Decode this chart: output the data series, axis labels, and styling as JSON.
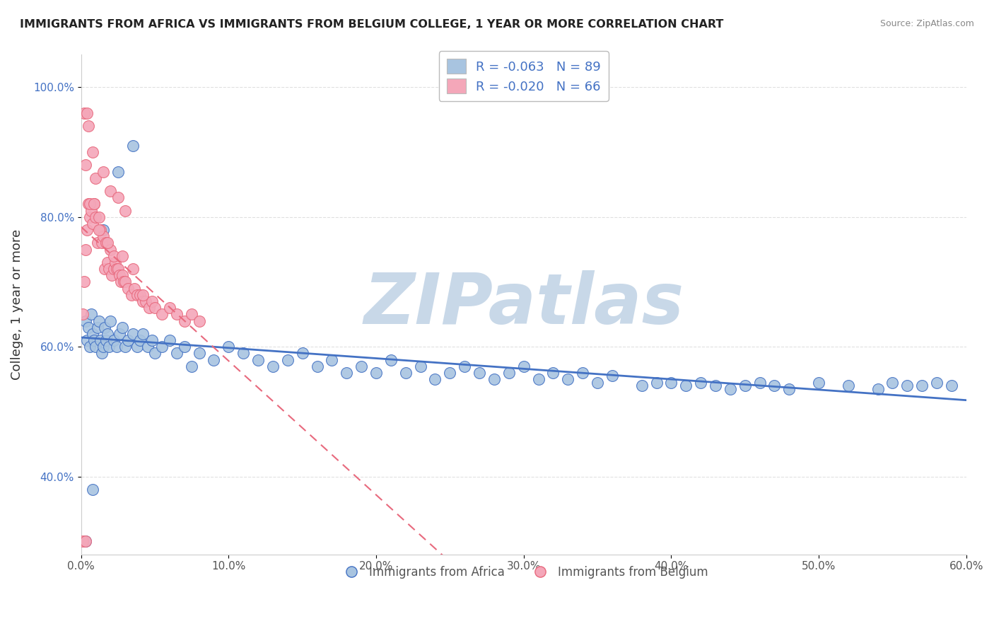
{
  "title": "IMMIGRANTS FROM AFRICA VS IMMIGRANTS FROM BELGIUM COLLEGE, 1 YEAR OR MORE CORRELATION CHART",
  "source": "Source: ZipAtlas.com",
  "ylabel": "College, 1 year or more",
  "xlim": [
    0.0,
    0.6
  ],
  "ylim": [
    0.28,
    1.05
  ],
  "xticks": [
    0.0,
    0.1,
    0.2,
    0.3,
    0.4,
    0.5,
    0.6
  ],
  "yticks": [
    0.4,
    0.6,
    0.8,
    1.0
  ],
  "xtick_labels": [
    "0.0%",
    "10.0%",
    "20.0%",
    "30.0%",
    "40.0%",
    "50.0%",
    "60.0%"
  ],
  "ytick_labels": [
    "40.0%",
    "60.0%",
    "80.0%",
    "100.0%"
  ],
  "series_africa": {
    "label": "Immigrants from Africa",
    "R": -0.063,
    "N": 89,
    "color": "#a8c4e0",
    "line_color": "#4472c4",
    "x": [
      0.003,
      0.004,
      0.005,
      0.006,
      0.007,
      0.008,
      0.009,
      0.01,
      0.011,
      0.012,
      0.013,
      0.014,
      0.015,
      0.016,
      0.017,
      0.018,
      0.019,
      0.02,
      0.022,
      0.024,
      0.026,
      0.028,
      0.03,
      0.032,
      0.035,
      0.038,
      0.04,
      0.042,
      0.045,
      0.048,
      0.05,
      0.055,
      0.06,
      0.065,
      0.07,
      0.075,
      0.08,
      0.09,
      0.1,
      0.11,
      0.12,
      0.13,
      0.14,
      0.15,
      0.16,
      0.17,
      0.18,
      0.19,
      0.2,
      0.21,
      0.22,
      0.23,
      0.24,
      0.25,
      0.26,
      0.27,
      0.28,
      0.29,
      0.3,
      0.31,
      0.32,
      0.33,
      0.34,
      0.35,
      0.36,
      0.38,
      0.39,
      0.4,
      0.41,
      0.42,
      0.43,
      0.44,
      0.45,
      0.46,
      0.47,
      0.48,
      0.5,
      0.52,
      0.54,
      0.55,
      0.56,
      0.57,
      0.58,
      0.59,
      0.003,
      0.008,
      0.015,
      0.025,
      0.035
    ],
    "y": [
      0.64,
      0.61,
      0.63,
      0.6,
      0.65,
      0.62,
      0.61,
      0.6,
      0.63,
      0.64,
      0.61,
      0.59,
      0.6,
      0.63,
      0.61,
      0.62,
      0.6,
      0.64,
      0.61,
      0.6,
      0.62,
      0.63,
      0.6,
      0.61,
      0.62,
      0.6,
      0.61,
      0.62,
      0.6,
      0.61,
      0.59,
      0.6,
      0.61,
      0.59,
      0.6,
      0.57,
      0.59,
      0.58,
      0.6,
      0.59,
      0.58,
      0.57,
      0.58,
      0.59,
      0.57,
      0.58,
      0.56,
      0.57,
      0.56,
      0.58,
      0.56,
      0.57,
      0.55,
      0.56,
      0.57,
      0.56,
      0.55,
      0.56,
      0.57,
      0.55,
      0.56,
      0.55,
      0.56,
      0.545,
      0.555,
      0.54,
      0.545,
      0.545,
      0.54,
      0.545,
      0.54,
      0.535,
      0.54,
      0.545,
      0.54,
      0.535,
      0.545,
      0.54,
      0.535,
      0.545,
      0.54,
      0.54,
      0.545,
      0.54,
      0.3,
      0.38,
      0.78,
      0.87,
      0.91
    ]
  },
  "series_belgium": {
    "label": "Immigrants from Belgium",
    "R": -0.02,
    "N": 66,
    "color": "#f4a7b9",
    "line_color": "#e8697d",
    "line_extend_to": 0.6,
    "x": [
      0.001,
      0.002,
      0.003,
      0.004,
      0.005,
      0.006,
      0.007,
      0.008,
      0.009,
      0.01,
      0.011,
      0.012,
      0.013,
      0.014,
      0.015,
      0.016,
      0.017,
      0.018,
      0.019,
      0.02,
      0.021,
      0.022,
      0.023,
      0.024,
      0.025,
      0.026,
      0.027,
      0.028,
      0.029,
      0.03,
      0.032,
      0.034,
      0.036,
      0.038,
      0.04,
      0.042,
      0.044,
      0.046,
      0.048,
      0.05,
      0.055,
      0.06,
      0.065,
      0.07,
      0.075,
      0.08,
      0.003,
      0.005,
      0.008,
      0.01,
      0.015,
      0.02,
      0.025,
      0.03,
      0.002,
      0.004,
      0.006,
      0.009,
      0.012,
      0.018,
      0.022,
      0.028,
      0.035,
      0.042,
      0.001,
      0.003
    ],
    "y": [
      0.65,
      0.7,
      0.75,
      0.78,
      0.82,
      0.8,
      0.81,
      0.79,
      0.82,
      0.8,
      0.76,
      0.8,
      0.78,
      0.76,
      0.77,
      0.72,
      0.76,
      0.73,
      0.72,
      0.75,
      0.71,
      0.72,
      0.73,
      0.72,
      0.72,
      0.71,
      0.7,
      0.71,
      0.7,
      0.7,
      0.69,
      0.68,
      0.69,
      0.68,
      0.68,
      0.67,
      0.67,
      0.66,
      0.67,
      0.66,
      0.65,
      0.66,
      0.65,
      0.64,
      0.65,
      0.64,
      0.88,
      0.94,
      0.9,
      0.86,
      0.87,
      0.84,
      0.83,
      0.81,
      0.96,
      0.96,
      0.82,
      0.82,
      0.78,
      0.76,
      0.74,
      0.74,
      0.72,
      0.68,
      0.3,
      0.3
    ]
  },
  "watermark": "ZIPatlas",
  "watermark_color": "#c8d8e8",
  "background_color": "#ffffff",
  "grid_color": "#e0e0e0",
  "legend_africa_color": "#a8c4e0",
  "legend_belgium_color": "#f4a7b9"
}
